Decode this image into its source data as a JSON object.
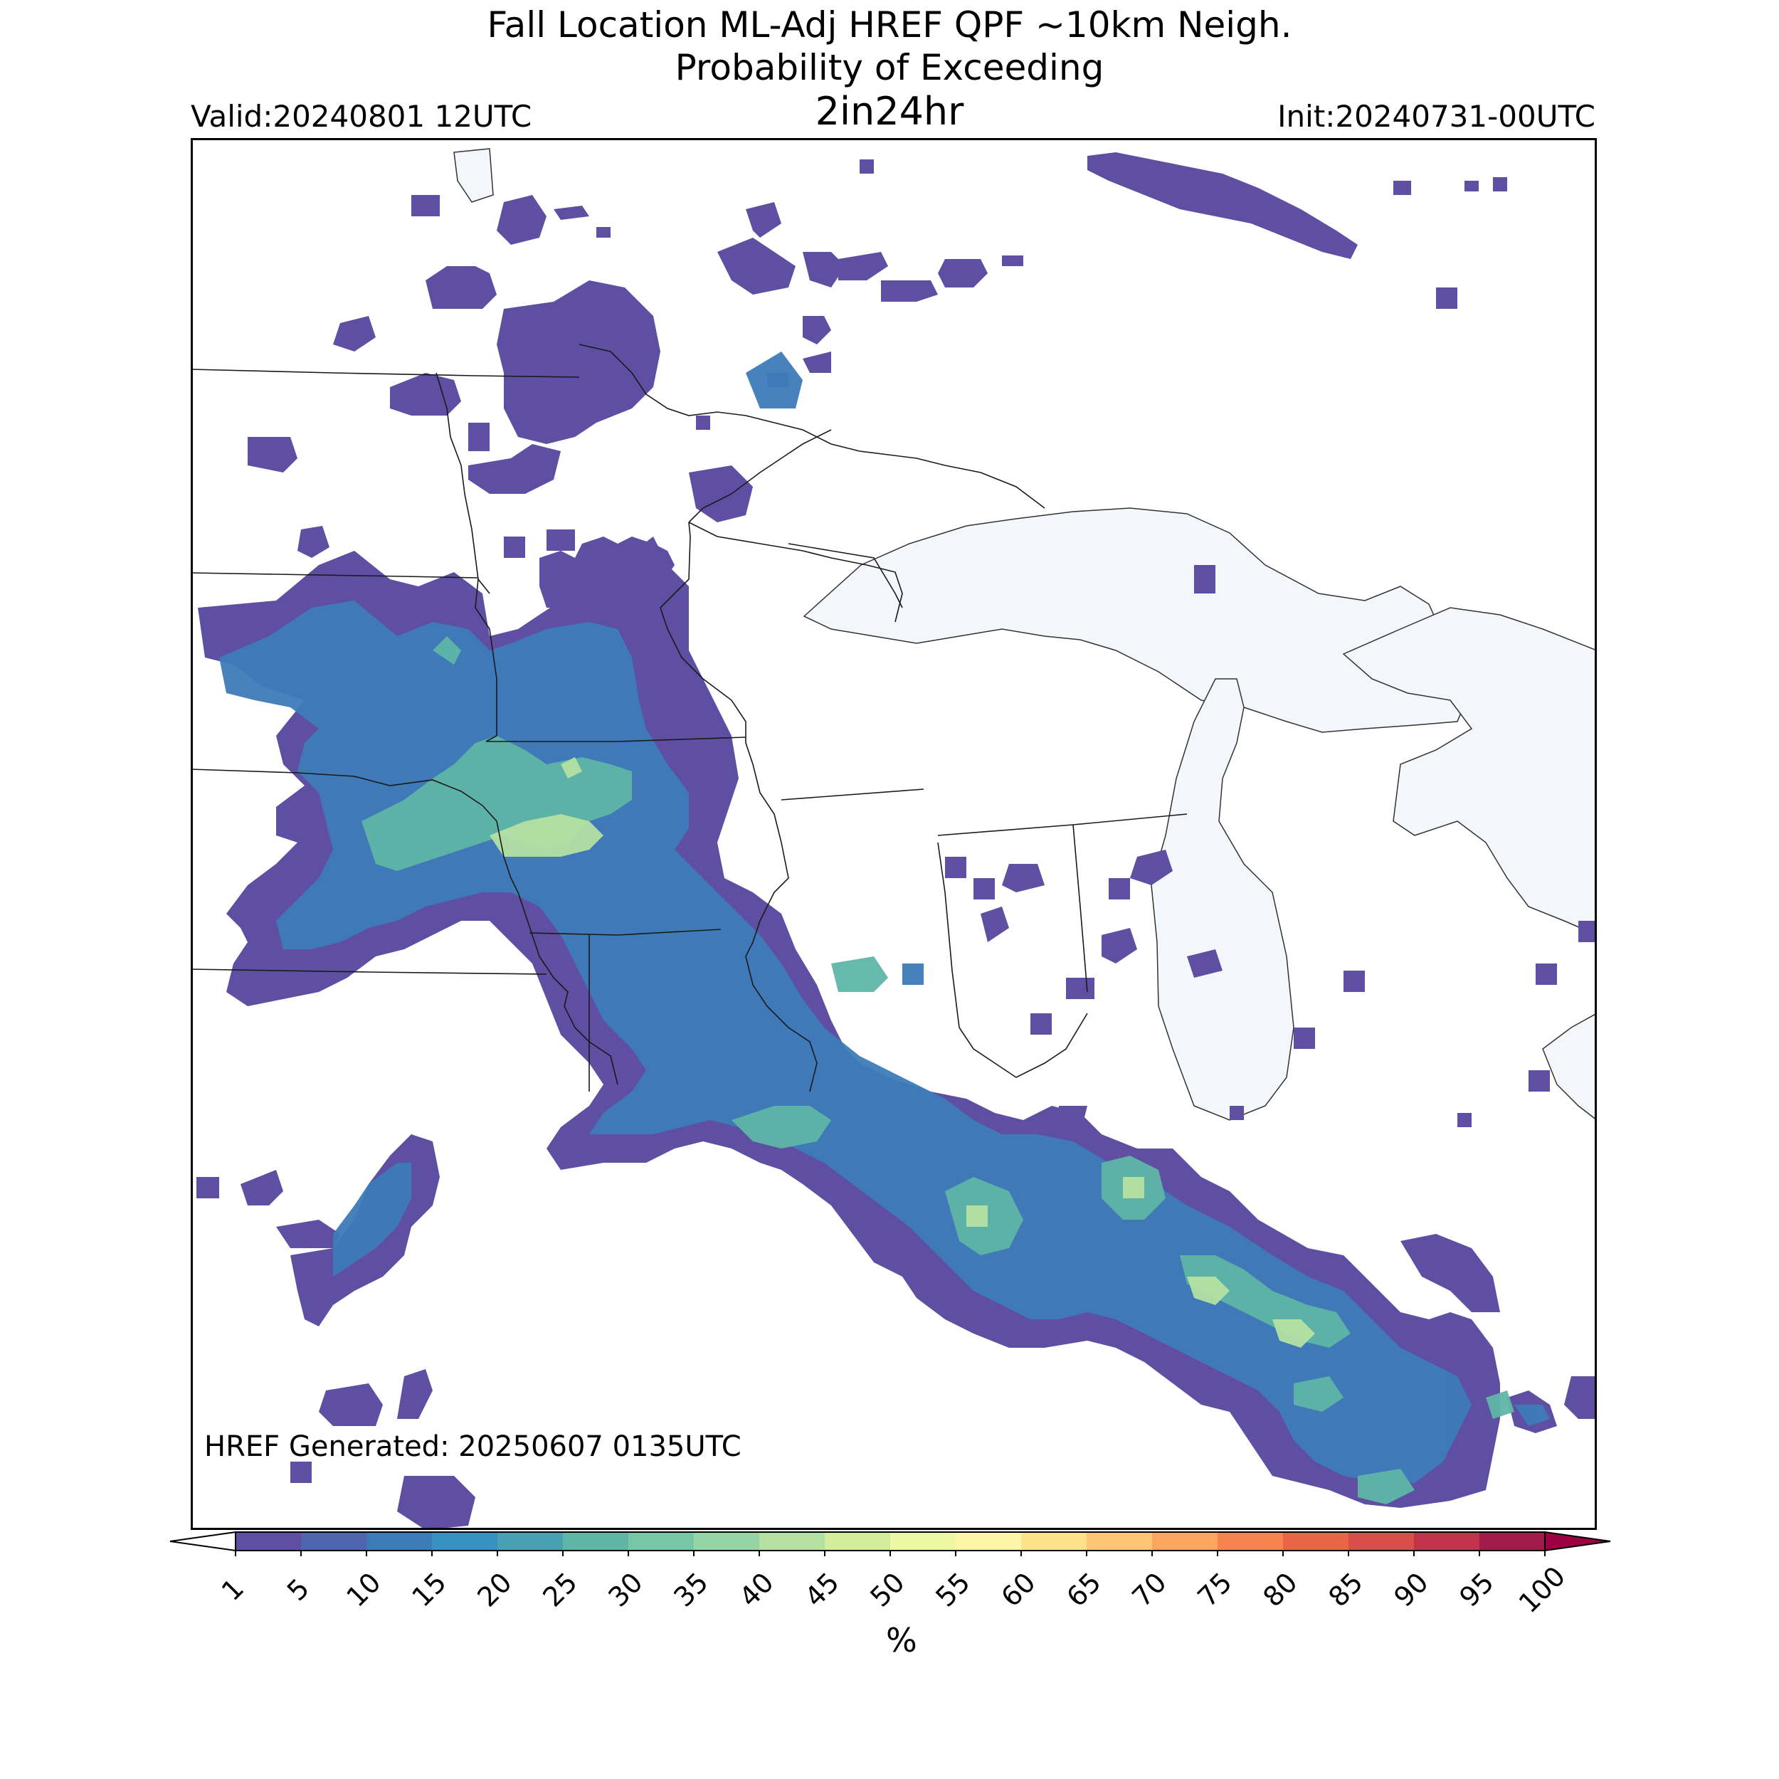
{
  "title": {
    "line1": "Fall Location ML-Adj HREF QPF ~10km Neigh.",
    "line2": "Probability of Exceeding",
    "line3": "2in24hr"
  },
  "valid_label": "Valid:20240801 12UTC",
  "init_label": "Init:20240731-00UTC",
  "generated_label": "HREF Generated: 20250607 0135UTC",
  "colorbar": {
    "ticks": [
      "1",
      "5",
      "10",
      "15",
      "20",
      "25",
      "30",
      "35",
      "40",
      "45",
      "50",
      "55",
      "60",
      "65",
      "70",
      "75",
      "80",
      "85",
      "90",
      "95",
      "100"
    ],
    "colors": [
      "#5e4fa2",
      "#4d65ad",
      "#3d7bb8",
      "#3690c0",
      "#48a0b2",
      "#5fb5a6",
      "#77c7a6",
      "#95d4a4",
      "#b4e0a2",
      "#d3ed9c",
      "#eef7a4",
      "#fdf6a8",
      "#fee28a",
      "#fdc674",
      "#fca55d",
      "#f7844e",
      "#ea6446",
      "#d94d4b",
      "#c2324b",
      "#a11b4a"
    ],
    "under_color": "#ffffff",
    "over_color": "#9e0142",
    "unit": "%"
  },
  "map": {
    "lake_color": "#f3f6fb",
    "border_color": "#1a1a1a",
    "prob_colors": {
      "low": "#5e4fa2",
      "mid": "#3d7bb8",
      "high": "#5fb5a6",
      "peak": "#b4e0a2"
    }
  }
}
